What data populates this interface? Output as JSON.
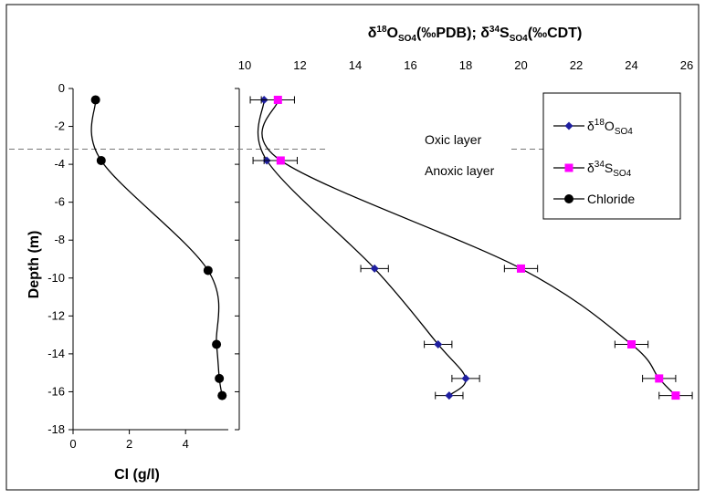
{
  "chart_data": [
    {
      "type": "line",
      "panel": "chloride",
      "xlabel": "Cl (g/l)",
      "ylabel": "Depth (m)",
      "xlim": [
        0,
        6
      ],
      "ylim": [
        -18,
        0
      ],
      "x_ticks": [
        "0",
        "2",
        "4"
      ],
      "y_ticks": [
        "0",
        "-2",
        "-4",
        "-6",
        "-8",
        "-10",
        "-12",
        "-14",
        "-16",
        "-18"
      ],
      "series": [
        {
          "name": "Chloride",
          "color": "#000000",
          "marker": "circle",
          "points": [
            {
              "x": 0.8,
              "y": -0.6
            },
            {
              "x": 1.0,
              "y": -3.8
            },
            {
              "x": 4.8,
              "y": -9.6
            },
            {
              "x": 5.1,
              "y": -13.5
            },
            {
              "x": 5.2,
              "y": -15.3
            },
            {
              "x": 5.3,
              "y": -16.2
            }
          ]
        }
      ]
    },
    {
      "type": "line",
      "panel": "isotopes",
      "title": "δ¹⁸O_SO4(‰PDB); δ³⁴S_SO4(‰CDT)",
      "xlim": [
        9,
        26
      ],
      "ylim": [
        -18,
        0
      ],
      "x_ticks": [
        "10",
        "12",
        "14",
        "16",
        "18",
        "20",
        "22",
        "24",
        "26"
      ],
      "legend_position": "top-right",
      "annotations": [
        "Oxic layer",
        "Anoxic layer"
      ],
      "boundary_depth": -3.2,
      "series": [
        {
          "name": "δ18O SO4",
          "legend_main": "δ",
          "legend_sup": "18",
          "legend_el": "O",
          "legend_sub": "SO4",
          "color": "#1f1fa0",
          "marker": "diamond",
          "error": 0.5,
          "points": [
            {
              "x": 10.7,
              "y": -0.6
            },
            {
              "x": 10.8,
              "y": -3.8
            },
            {
              "x": 14.7,
              "y": -9.5
            },
            {
              "x": 17.0,
              "y": -13.5
            },
            {
              "x": 18.0,
              "y": -15.3
            },
            {
              "x": 17.4,
              "y": -16.2
            }
          ]
        },
        {
          "name": "δ34S SO4",
          "legend_main": "δ",
          "legend_sup": "34",
          "legend_el": "S",
          "legend_sub": "SO4",
          "color": "#ff00ff",
          "marker": "square",
          "error": 0.6,
          "points": [
            {
              "x": 11.2,
              "y": -0.6
            },
            {
              "x": 11.3,
              "y": -3.8
            },
            {
              "x": 20.0,
              "y": -9.5
            },
            {
              "x": 24.0,
              "y": -13.5
            },
            {
              "x": 25.0,
              "y": -15.3
            },
            {
              "x": 25.6,
              "y": -16.2
            }
          ]
        },
        {
          "name": "Chloride",
          "legend_main": "Chloride",
          "color": "#000000",
          "marker": "circle"
        }
      ]
    }
  ]
}
